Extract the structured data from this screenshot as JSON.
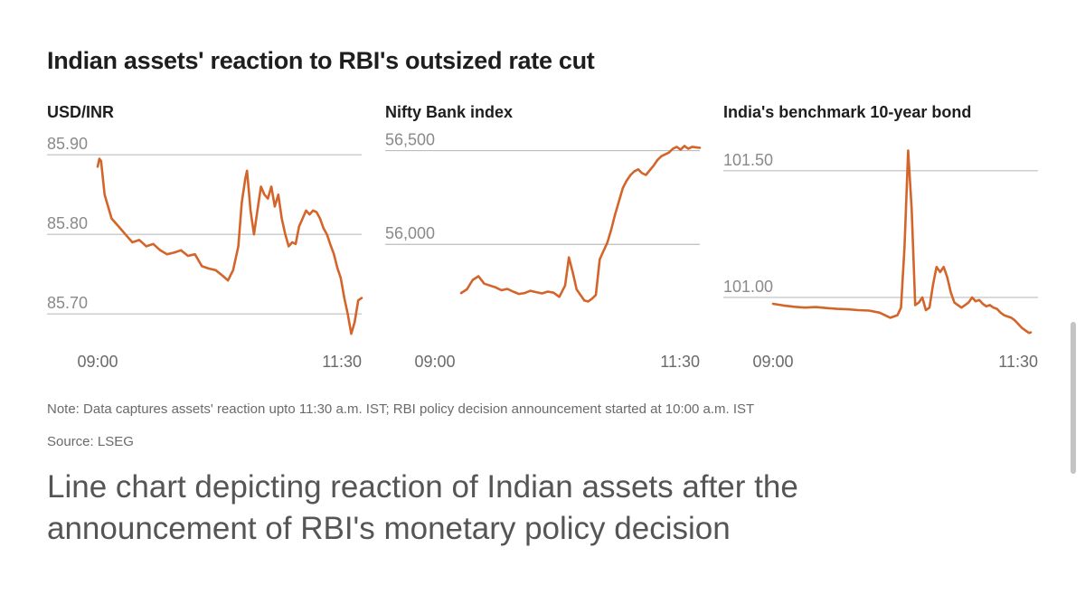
{
  "title": "Indian assets' reaction to RBI's outsized rate cut",
  "note": "Note: Data captures assets' reaction upto 11:30 a.m. IST; RBI policy decision announcement started at 10:00 a.m. IST",
  "source": "Source: LSEG",
  "caption": "Line chart depicting reaction of Indian assets after the announcement of RBI's monetary policy decision",
  "colors": {
    "line": "#d4652a",
    "grid": "#bdbdbd",
    "tick": "#8a8a8a"
  },
  "chart_data": [
    {
      "type": "line",
      "title": "USD/INR",
      "xlabel": "",
      "ylabel": "",
      "x_start_label": "09:00",
      "x_end_label": "11:30",
      "yticks": [
        85.7,
        85.8,
        85.9
      ],
      "ytick_labels": [
        "85.70",
        "85.80",
        "85.90"
      ],
      "ylim": [
        85.665,
        85.915
      ],
      "points": [
        [
          0,
          85.885
        ],
        [
          1,
          85.895
        ],
        [
          2,
          85.892
        ],
        [
          4,
          85.85
        ],
        [
          8,
          85.82
        ],
        [
          12,
          85.81
        ],
        [
          16,
          85.8
        ],
        [
          20,
          85.79
        ],
        [
          24,
          85.793
        ],
        [
          28,
          85.785
        ],
        [
          32,
          85.788
        ],
        [
          36,
          85.78
        ],
        [
          40,
          85.775
        ],
        [
          44,
          85.777
        ],
        [
          48,
          85.78
        ],
        [
          52,
          85.773
        ],
        [
          56,
          85.775
        ],
        [
          60,
          85.76
        ],
        [
          64,
          85.757
        ],
        [
          68,
          85.755
        ],
        [
          72,
          85.748
        ],
        [
          75,
          85.742
        ],
        [
          78,
          85.755
        ],
        [
          81,
          85.785
        ],
        [
          83,
          85.84
        ],
        [
          85,
          85.87
        ],
        [
          86,
          85.88
        ],
        [
          88,
          85.83
        ],
        [
          90,
          85.8
        ],
        [
          92,
          85.83
        ],
        [
          94,
          85.86
        ],
        [
          96,
          85.85
        ],
        [
          98,
          85.845
        ],
        [
          100,
          85.86
        ],
        [
          102,
          85.835
        ],
        [
          104,
          85.85
        ],
        [
          106,
          85.82
        ],
        [
          108,
          85.8
        ],
        [
          110,
          85.785
        ],
        [
          112,
          85.79
        ],
        [
          114,
          85.788
        ],
        [
          116,
          85.81
        ],
        [
          118,
          85.82
        ],
        [
          120,
          85.83
        ],
        [
          122,
          85.825
        ],
        [
          124,
          85.83
        ],
        [
          126,
          85.828
        ],
        [
          128,
          85.82
        ],
        [
          130,
          85.808
        ],
        [
          132,
          85.8
        ],
        [
          134,
          85.787
        ],
        [
          136,
          85.775
        ],
        [
          138,
          85.758
        ],
        [
          140,
          85.745
        ],
        [
          142,
          85.72
        ],
        [
          144,
          85.7
        ],
        [
          146,
          85.675
        ],
        [
          148,
          85.69
        ],
        [
          150,
          85.717
        ],
        [
          152,
          85.72
        ]
      ]
    },
    {
      "type": "line",
      "title": "Nifty Bank index",
      "xlabel": "",
      "ylabel": "",
      "x_start_label": "09:00",
      "x_end_label": "11:30",
      "yticks": [
        56000,
        56500
      ],
      "ytick_labels": [
        "56,000",
        "56,500"
      ],
      "ylim": [
        55480,
        56580
      ],
      "points": [
        [
          0,
          55740
        ],
        [
          3,
          55760
        ],
        [
          6,
          55810
        ],
        [
          9,
          55830
        ],
        [
          12,
          55790
        ],
        [
          15,
          55780
        ],
        [
          18,
          55770
        ],
        [
          21,
          55755
        ],
        [
          24,
          55762
        ],
        [
          27,
          55748
        ],
        [
          30,
          55735
        ],
        [
          33,
          55740
        ],
        [
          36,
          55752
        ],
        [
          39,
          55745
        ],
        [
          42,
          55738
        ],
        [
          45,
          55748
        ],
        [
          48,
          55742
        ],
        [
          51,
          55720
        ],
        [
          54,
          55780
        ],
        [
          56,
          55930
        ],
        [
          58,
          55850
        ],
        [
          60,
          55760
        ],
        [
          62,
          55730
        ],
        [
          64,
          55700
        ],
        [
          66,
          55695
        ],
        [
          68,
          55710
        ],
        [
          70,
          55730
        ],
        [
          72,
          55920
        ],
        [
          74,
          55965
        ],
        [
          76,
          56010
        ],
        [
          78,
          56080
        ],
        [
          80,
          56160
        ],
        [
          82,
          56230
        ],
        [
          84,
          56300
        ],
        [
          86,
          56340
        ],
        [
          88,
          56370
        ],
        [
          90,
          56390
        ],
        [
          92,
          56400
        ],
        [
          94,
          56380
        ],
        [
          96,
          56370
        ],
        [
          98,
          56395
        ],
        [
          100,
          56420
        ],
        [
          102,
          56450
        ],
        [
          104,
          56470
        ],
        [
          106,
          56480
        ],
        [
          108,
          56490
        ],
        [
          110,
          56510
        ],
        [
          112,
          56520
        ],
        [
          114,
          56505
        ],
        [
          116,
          56525
        ],
        [
          118,
          56510
        ],
        [
          120,
          56520
        ],
        [
          122,
          56518
        ],
        [
          124,
          56515
        ]
      ]
    },
    {
      "type": "line",
      "title": "India's benchmark 10-year bond",
      "xlabel": "",
      "ylabel": "",
      "x_start_label": "09:00",
      "x_end_label": "11:30",
      "yticks": [
        101.0,
        101.5
      ],
      "ytick_labels": [
        "101.00",
        "101.50"
      ],
      "ylim": [
        100.825,
        101.61
      ],
      "points": [
        [
          0,
          100.975
        ],
        [
          6,
          100.968
        ],
        [
          12,
          100.963
        ],
        [
          18,
          100.96
        ],
        [
          24,
          100.962
        ],
        [
          30,
          100.958
        ],
        [
          36,
          100.955
        ],
        [
          42,
          100.953
        ],
        [
          48,
          100.95
        ],
        [
          54,
          100.948
        ],
        [
          60,
          100.94
        ],
        [
          66,
          100.92
        ],
        [
          70,
          100.93
        ],
        [
          72,
          100.96
        ],
        [
          74,
          101.2
        ],
        [
          76,
          101.58
        ],
        [
          78,
          101.35
        ],
        [
          80,
          100.97
        ],
        [
          82,
          100.98
        ],
        [
          84,
          101.0
        ],
        [
          86,
          100.95
        ],
        [
          88,
          100.96
        ],
        [
          90,
          101.05
        ],
        [
          92,
          101.12
        ],
        [
          94,
          101.1
        ],
        [
          96,
          101.12
        ],
        [
          98,
          101.08
        ],
        [
          100,
          101.02
        ],
        [
          102,
          100.98
        ],
        [
          104,
          100.97
        ],
        [
          106,
          100.96
        ],
        [
          108,
          100.97
        ],
        [
          110,
          100.98
        ],
        [
          112,
          101.0
        ],
        [
          114,
          100.985
        ],
        [
          116,
          100.99
        ],
        [
          118,
          100.975
        ],
        [
          120,
          100.965
        ],
        [
          122,
          100.97
        ],
        [
          124,
          100.96
        ],
        [
          126,
          100.955
        ],
        [
          128,
          100.94
        ],
        [
          130,
          100.93
        ],
        [
          132,
          100.925
        ],
        [
          134,
          100.92
        ],
        [
          136,
          100.91
        ],
        [
          138,
          100.895
        ],
        [
          140,
          100.88
        ],
        [
          142,
          100.87
        ],
        [
          144,
          100.86
        ],
        [
          145,
          100.862
        ]
      ]
    }
  ]
}
